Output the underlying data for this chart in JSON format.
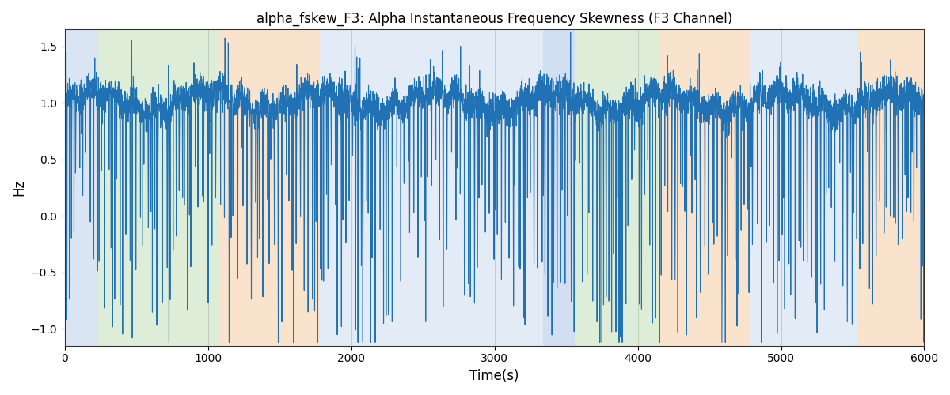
{
  "title": "alpha_fskew_F3: Alpha Instantaneous Frequency Skewness (F3 Channel)",
  "xlabel": "Time(s)",
  "ylabel": "Hz",
  "xlim": [
    0,
    6000
  ],
  "ylim": [
    -1.15,
    1.65
  ],
  "yticks": [
    -1.0,
    -0.5,
    0.0,
    0.5,
    1.0,
    1.5
  ],
  "xticks": [
    0,
    1000,
    2000,
    3000,
    4000,
    5000,
    6000
  ],
  "line_color": "#2171b5",
  "line_width": 0.8,
  "background_regions": [
    {
      "xmin": 0,
      "xmax": 230,
      "color": "#aec6e8",
      "alpha": 0.45
    },
    {
      "xmin": 230,
      "xmax": 1080,
      "color": "#b5d9a8",
      "alpha": 0.45
    },
    {
      "xmin": 1080,
      "xmax": 1780,
      "color": "#f5c99a",
      "alpha": 0.5
    },
    {
      "xmin": 1780,
      "xmax": 3340,
      "color": "#aec6e8",
      "alpha": 0.35
    },
    {
      "xmin": 3340,
      "xmax": 3560,
      "color": "#aec6e8",
      "alpha": 0.55
    },
    {
      "xmin": 3560,
      "xmax": 4150,
      "color": "#b5d9a8",
      "alpha": 0.45
    },
    {
      "xmin": 4150,
      "xmax": 4780,
      "color": "#f5c99a",
      "alpha": 0.5
    },
    {
      "xmin": 4780,
      "xmax": 5530,
      "color": "#aec6e8",
      "alpha": 0.35
    },
    {
      "xmin": 5530,
      "xmax": 6000,
      "color": "#f5c99a",
      "alpha": 0.5
    }
  ],
  "figsize": [
    12.0,
    5.0
  ],
  "dpi": 100,
  "seed": 42
}
